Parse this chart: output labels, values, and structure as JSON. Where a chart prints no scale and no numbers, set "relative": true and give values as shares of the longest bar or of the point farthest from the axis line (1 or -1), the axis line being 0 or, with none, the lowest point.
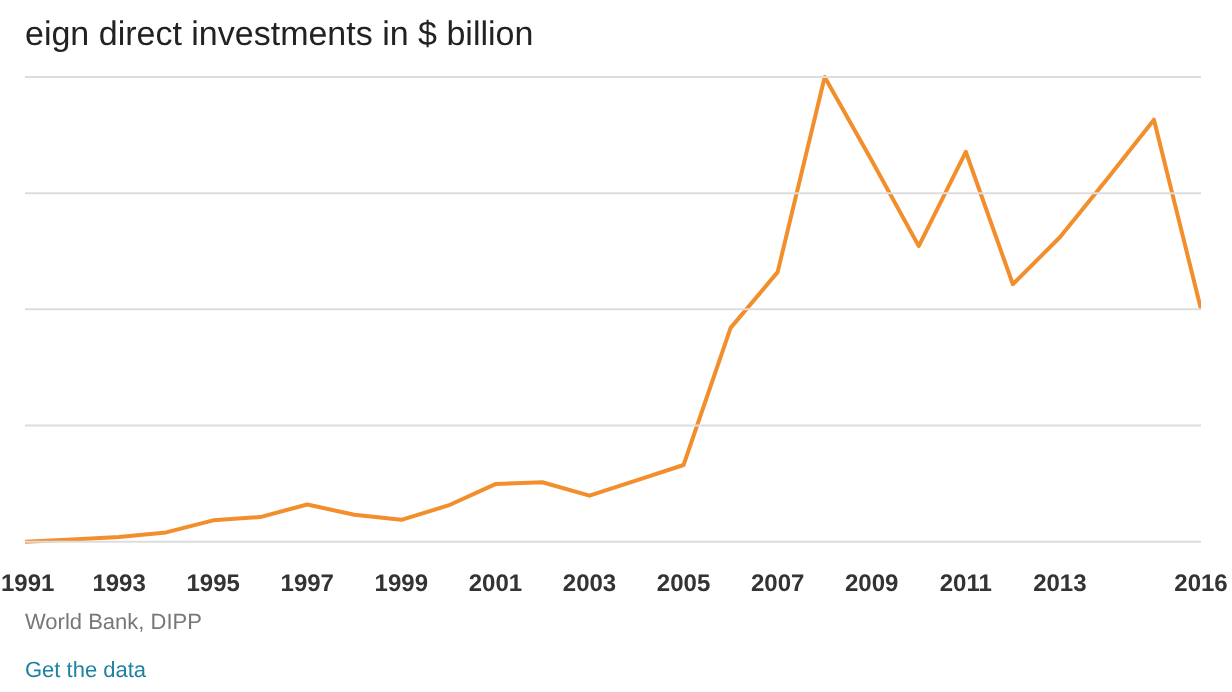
{
  "chart_data": {
    "type": "line",
    "title": "eign direct investments in $ billion",
    "relative": true,
    "grid": "y",
    "x": [
      1991,
      1992,
      1993,
      1994,
      1995,
      1996,
      1997,
      1998,
      1999,
      2000,
      2001,
      2002,
      2003,
      2004,
      2005,
      2006,
      2007,
      2008,
      2009,
      2010,
      2011,
      2012,
      2013,
      2014,
      2015,
      2016
    ],
    "xticks": [
      1991,
      1993,
      1995,
      1997,
      1999,
      2001,
      2003,
      2005,
      2007,
      2009,
      2011,
      2013,
      2016
    ],
    "xlim": [
      1991,
      2016
    ],
    "series": [
      {
        "color": "#f28e2b",
        "values": [
          0,
          0.005,
          0.01,
          0.02,
          0.046,
          0.053,
          0.08,
          0.058,
          0.047,
          0.078,
          0.124,
          0.128,
          0.099,
          0.132,
          0.165,
          0.46,
          0.58,
          1.0,
          0.82,
          0.636,
          0.839,
          0.554,
          0.655,
          0.78,
          0.908,
          0.5
        ]
      }
    ],
    "annotations": [
      "World Bank, DIPP",
      "Get the data"
    ]
  }
}
